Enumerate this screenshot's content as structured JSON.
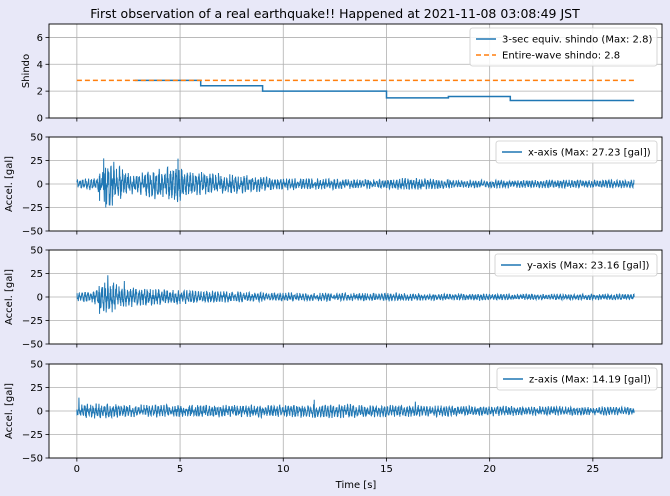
{
  "figure": {
    "title": "First observation of a real earthquake!! Happened at 2021-11-08 03:08:49 JST",
    "background": "#e8e8f8",
    "xlabel": "Time [s]"
  },
  "chart_data": [
    {
      "type": "line",
      "title": "First observation of a real earthquake!! Happened at 2021-11-08 03:08:49 JST",
      "ylabel": "Shindo",
      "xlim": [
        -1.35,
        28.35
      ],
      "ylim": [
        0,
        7
      ],
      "yticks": [
        0,
        2,
        4,
        6
      ],
      "xticks": [
        0,
        5,
        10,
        15,
        20,
        25
      ],
      "show_xticklabels": false,
      "grid": true,
      "legend": "top-right",
      "series": [
        {
          "name": "3-sec equiv. shindo (Max: 2.8)",
          "color": "#1f77b4",
          "style": "step",
          "x": [
            2.8,
            6.0,
            6.0,
            9.0,
            9.0,
            15.0,
            15.0,
            18.0,
            18.0,
            21.0,
            21.0,
            27.0
          ],
          "y": [
            2.8,
            2.8,
            2.4,
            2.4,
            2.0,
            2.0,
            1.5,
            1.5,
            1.6,
            1.6,
            1.3,
            1.3
          ]
        },
        {
          "name": "Entire-wave shindo: 2.8",
          "color": "#ff7f0e",
          "style": "dashed",
          "x": [
            0,
            27
          ],
          "y": [
            2.8,
            2.8
          ]
        }
      ]
    },
    {
      "type": "line",
      "ylabel": "Accel. [gal]",
      "xlim": [
        -1.35,
        28.35
      ],
      "ylim": [
        -50,
        50
      ],
      "yticks": [
        -50,
        -25,
        0,
        25,
        50
      ],
      "xticks": [
        0,
        5,
        10,
        15,
        20,
        25
      ],
      "show_xticklabels": false,
      "grid": true,
      "legend": "top-right",
      "series": [
        {
          "name": "x-axis (Max: 27.23 [gal])",
          "color": "#1f77b4",
          "envelope_t": [
            0,
            1.0,
            1.3,
            1.6,
            2.3,
            2.8,
            3.5,
            4.2,
            4.9,
            5.4,
            6.5,
            8,
            10,
            13,
            15,
            16,
            19,
            22,
            27
          ],
          "envelope_a": [
            5,
            6,
            22,
            24,
            14,
            9,
            13,
            16,
            17,
            12,
            11,
            9,
            6,
            5,
            5,
            6,
            4,
            4,
            4
          ],
          "peaks": [
            [
              1.3,
              27.23
            ],
            [
              1.4,
              -25
            ],
            [
              4.9,
              27
            ],
            [
              1.1,
              -18
            ]
          ]
        }
      ]
    },
    {
      "type": "line",
      "ylabel": "Accel. [gal]",
      "xlim": [
        -1.35,
        28.35
      ],
      "ylim": [
        -50,
        50
      ],
      "yticks": [
        -50,
        -25,
        0,
        25,
        50
      ],
      "xticks": [
        0,
        5,
        10,
        15,
        20,
        25
      ],
      "show_xticklabels": false,
      "grid": true,
      "legend": "top-right",
      "series": [
        {
          "name": "y-axis (Max: 23.16 [gal])",
          "color": "#1f77b4",
          "envelope_t": [
            0,
            0.8,
            1.2,
            1.6,
            2.2,
            3.0,
            4.0,
            6.0,
            8.0,
            10,
            13,
            16,
            20,
            27
          ],
          "envelope_a": [
            4,
            6,
            14,
            16,
            10,
            9,
            8,
            6,
            5,
            4,
            4,
            4,
            3,
            3
          ],
          "peaks": [
            [
              1.5,
              23.16
            ],
            [
              1.1,
              -18
            ],
            [
              2.3,
              17
            ]
          ]
        }
      ]
    },
    {
      "type": "line",
      "ylabel": "Accel. [gal]",
      "xlabel": "Time [s]",
      "xlim": [
        -1.35,
        28.35
      ],
      "ylim": [
        -50,
        50
      ],
      "yticks": [
        -50,
        -25,
        0,
        25,
        50
      ],
      "xticks": [
        0,
        5,
        10,
        15,
        20,
        25
      ],
      "show_xticklabels": true,
      "grid": true,
      "legend": "top-right",
      "series": [
        {
          "name": "z-axis (Max: 14.19 [gal])",
          "color": "#1f77b4",
          "envelope_t": [
            0,
            0.5,
            1.5,
            3,
            6,
            10,
            12,
            15,
            20,
            27
          ],
          "envelope_a": [
            6,
            7,
            7,
            6,
            6,
            6,
            7,
            6,
            5,
            4
          ],
          "peaks": [
            [
              0.1,
              14.19
            ],
            [
              11.5,
              12
            ],
            [
              16.4,
              10
            ]
          ]
        }
      ]
    }
  ]
}
